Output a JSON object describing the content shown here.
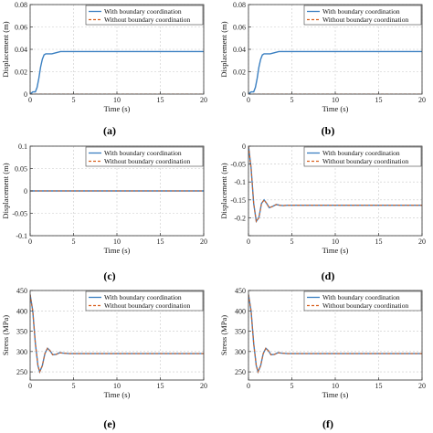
{
  "chart_data": [
    {
      "id": "a",
      "type": "line",
      "panel_label": "(a)",
      "title": "",
      "xlabel": "Time (s)",
      "ylabel": "Displacement (m)",
      "xlim": [
        0,
        20
      ],
      "ylim": [
        0,
        0.08
      ],
      "xticks": [
        0,
        5,
        10,
        15,
        20
      ],
      "yticks": [
        0,
        0.02,
        0.04,
        0.06,
        0.08
      ],
      "ytick_labels": [
        "0",
        "0.02",
        "0.04",
        "0.06",
        "0.08"
      ],
      "grid": true,
      "legend": "top-right",
      "series": [
        {
          "name": "With boundary coordination",
          "color": "#3a7fc1",
          "dash": "",
          "x": [
            0,
            0.3,
            0.6,
            0.8,
            1.0,
            1.2,
            1.4,
            1.6,
            1.8,
            2.0,
            2.5,
            3.0,
            3.5,
            5,
            10,
            15,
            20
          ],
          "y": [
            0,
            0.002,
            0.002,
            0.006,
            0.014,
            0.024,
            0.031,
            0.035,
            0.036,
            0.036,
            0.036,
            0.037,
            0.038,
            0.038,
            0.038,
            0.038,
            0.038
          ]
        },
        {
          "name": "Without boundary coordination",
          "color": "#d9601f",
          "dash": "3,2",
          "x": [
            0,
            20
          ],
          "y": [
            0,
            0
          ]
        }
      ]
    },
    {
      "id": "b",
      "type": "line",
      "panel_label": "(b)",
      "title": "",
      "xlabel": "Time (s)",
      "ylabel": "Displacement (m)",
      "xlim": [
        0,
        20
      ],
      "ylim": [
        0,
        0.08
      ],
      "xticks": [
        0,
        5,
        10,
        15,
        20
      ],
      "yticks": [
        0,
        0.02,
        0.04,
        0.06,
        0.08
      ],
      "ytick_labels": [
        "0",
        "0.02",
        "0.04",
        "0.06",
        "0.08"
      ],
      "grid": true,
      "legend": "top-right",
      "series": [
        {
          "name": "With boundary coordination",
          "color": "#3a7fc1",
          "dash": "",
          "x": [
            0,
            0.3,
            0.6,
            0.8,
            1.0,
            1.2,
            1.4,
            1.6,
            1.8,
            2.0,
            2.5,
            3.0,
            3.5,
            5,
            10,
            15,
            20
          ],
          "y": [
            0,
            0.002,
            0.002,
            0.006,
            0.014,
            0.024,
            0.031,
            0.035,
            0.036,
            0.036,
            0.036,
            0.037,
            0.038,
            0.038,
            0.038,
            0.038,
            0.038
          ]
        },
        {
          "name": "Without boundary coordination",
          "color": "#d9601f",
          "dash": "3,2",
          "x": [
            0,
            20
          ],
          "y": [
            0,
            0
          ]
        }
      ]
    },
    {
      "id": "c",
      "type": "line",
      "panel_label": "(c)",
      "title": "",
      "xlabel": "Time (s)",
      "ylabel": "Displacement (m)",
      "xlim": [
        0,
        20
      ],
      "ylim": [
        -0.1,
        0.1
      ],
      "xticks": [
        0,
        5,
        10,
        15,
        20
      ],
      "yticks": [
        -0.1,
        -0.05,
        0,
        0.05,
        0.1
      ],
      "ytick_labels": [
        "-0.1",
        "-0.05",
        "0",
        "0.05",
        "0.1"
      ],
      "grid": true,
      "legend": "top-right",
      "series": [
        {
          "name": "With boundary coordination",
          "color": "#3a7fc1",
          "dash": "",
          "x": [
            0,
            20
          ],
          "y": [
            0,
            0
          ]
        },
        {
          "name": "Without boundary coordination",
          "color": "#d9601f",
          "dash": "3,2",
          "x": [
            0,
            20
          ],
          "y": [
            0,
            0
          ]
        }
      ]
    },
    {
      "id": "d",
      "type": "line",
      "panel_label": "(d)",
      "title": "",
      "xlabel": "Time (s)",
      "ylabel": "Displacement (m)",
      "xlim": [
        0,
        20
      ],
      "ylim": [
        -0.25,
        0
      ],
      "xticks": [
        0,
        5,
        10,
        15,
        20
      ],
      "yticks": [
        -0.25,
        -0.2,
        -0.15,
        -0.1,
        -0.05,
        0
      ],
      "ytick_labels": [
        "",
        "-0.2",
        "-0.15",
        "-0.1",
        "-0.05",
        "0"
      ],
      "grid": true,
      "legend": "top-right",
      "series": [
        {
          "name": "With boundary coordination",
          "color": "#3a7fc1",
          "dash": "",
          "x": [
            0,
            0.3,
            0.6,
            0.9,
            1.2,
            1.5,
            1.8,
            2.1,
            2.4,
            2.8,
            3.2,
            3.6,
            4.0,
            4.5,
            5,
            10,
            15,
            20
          ],
          "y": [
            0,
            -0.06,
            -0.16,
            -0.21,
            -0.2,
            -0.16,
            -0.15,
            -0.16,
            -0.172,
            -0.168,
            -0.163,
            -0.165,
            -0.166,
            -0.165,
            -0.165,
            -0.165,
            -0.165,
            -0.165
          ]
        },
        {
          "name": "Without boundary coordination",
          "color": "#d9601f",
          "dash": "3,2",
          "x": [
            0,
            0.3,
            0.6,
            0.9,
            1.2,
            1.5,
            1.8,
            2.1,
            2.4,
            2.8,
            3.2,
            3.6,
            4.0,
            4.5,
            5,
            10,
            15,
            20
          ],
          "y": [
            0,
            -0.06,
            -0.16,
            -0.21,
            -0.2,
            -0.16,
            -0.15,
            -0.16,
            -0.172,
            -0.168,
            -0.163,
            -0.165,
            -0.166,
            -0.165,
            -0.165,
            -0.165,
            -0.165,
            -0.165
          ]
        }
      ]
    },
    {
      "id": "e",
      "type": "line",
      "panel_label": "(e)",
      "title": "",
      "xlabel": "Time (s)",
      "ylabel": "Stress (MPa)",
      "xlim": [
        0,
        20
      ],
      "ylim": [
        230,
        450
      ],
      "xticks": [
        0,
        5,
        10,
        15,
        20
      ],
      "yticks": [
        250,
        300,
        350,
        400,
        450
      ],
      "ytick_labels": [
        "250",
        "300",
        "350",
        "400",
        "450"
      ],
      "grid": true,
      "legend": "top-right",
      "series": [
        {
          "name": "With boundary coordination",
          "color": "#3a7fc1",
          "dash": "",
          "x": [
            0,
            0.3,
            0.6,
            0.9,
            1.1,
            1.4,
            1.7,
            2.0,
            2.3,
            2.6,
            3.0,
            3.4,
            3.8,
            4.5,
            5,
            10,
            15,
            20
          ],
          "y": [
            440,
            400,
            320,
            265,
            250,
            265,
            295,
            308,
            302,
            292,
            293,
            297,
            296,
            295,
            295,
            295,
            295,
            295
          ]
        },
        {
          "name": "Without boundary coordination",
          "color": "#d9601f",
          "dash": "3,2",
          "x": [
            0,
            0.3,
            0.6,
            0.9,
            1.1,
            1.4,
            1.7,
            2.0,
            2.3,
            2.6,
            3.0,
            3.4,
            3.8,
            4.5,
            5,
            10,
            15,
            20
          ],
          "y": [
            440,
            400,
            320,
            265,
            250,
            265,
            295,
            308,
            302,
            292,
            293,
            297,
            296,
            295,
            295,
            295,
            295,
            295
          ]
        }
      ]
    },
    {
      "id": "f",
      "type": "line",
      "panel_label": "(f)",
      "title": "",
      "xlabel": "Time (s)",
      "ylabel": "Stress (MPa)",
      "xlim": [
        0,
        20
      ],
      "ylim": [
        230,
        450
      ],
      "xticks": [
        0,
        5,
        10,
        15,
        20
      ],
      "yticks": [
        250,
        300,
        350,
        400,
        450
      ],
      "ytick_labels": [
        "250",
        "300",
        "350",
        "400",
        "450"
      ],
      "grid": true,
      "legend": "top-right",
      "series": [
        {
          "name": "With boundary coordination",
          "color": "#3a7fc1",
          "dash": "",
          "x": [
            0,
            0.3,
            0.6,
            0.9,
            1.1,
            1.4,
            1.7,
            2.0,
            2.3,
            2.6,
            3.0,
            3.4,
            3.8,
            4.5,
            5,
            10,
            15,
            20
          ],
          "y": [
            440,
            400,
            320,
            265,
            250,
            265,
            295,
            308,
            302,
            292,
            293,
            297,
            296,
            295,
            295,
            295,
            295,
            295
          ]
        },
        {
          "name": "Without boundary coordination",
          "color": "#d9601f",
          "dash": "3,2",
          "x": [
            0,
            0.3,
            0.6,
            0.9,
            1.1,
            1.4,
            1.7,
            2.0,
            2.3,
            2.6,
            3.0,
            3.4,
            3.8,
            4.5,
            5,
            10,
            15,
            20
          ],
          "y": [
            440,
            400,
            320,
            265,
            250,
            265,
            295,
            308,
            302,
            292,
            293,
            297,
            296,
            295,
            295,
            295,
            295,
            295
          ]
        }
      ]
    }
  ]
}
